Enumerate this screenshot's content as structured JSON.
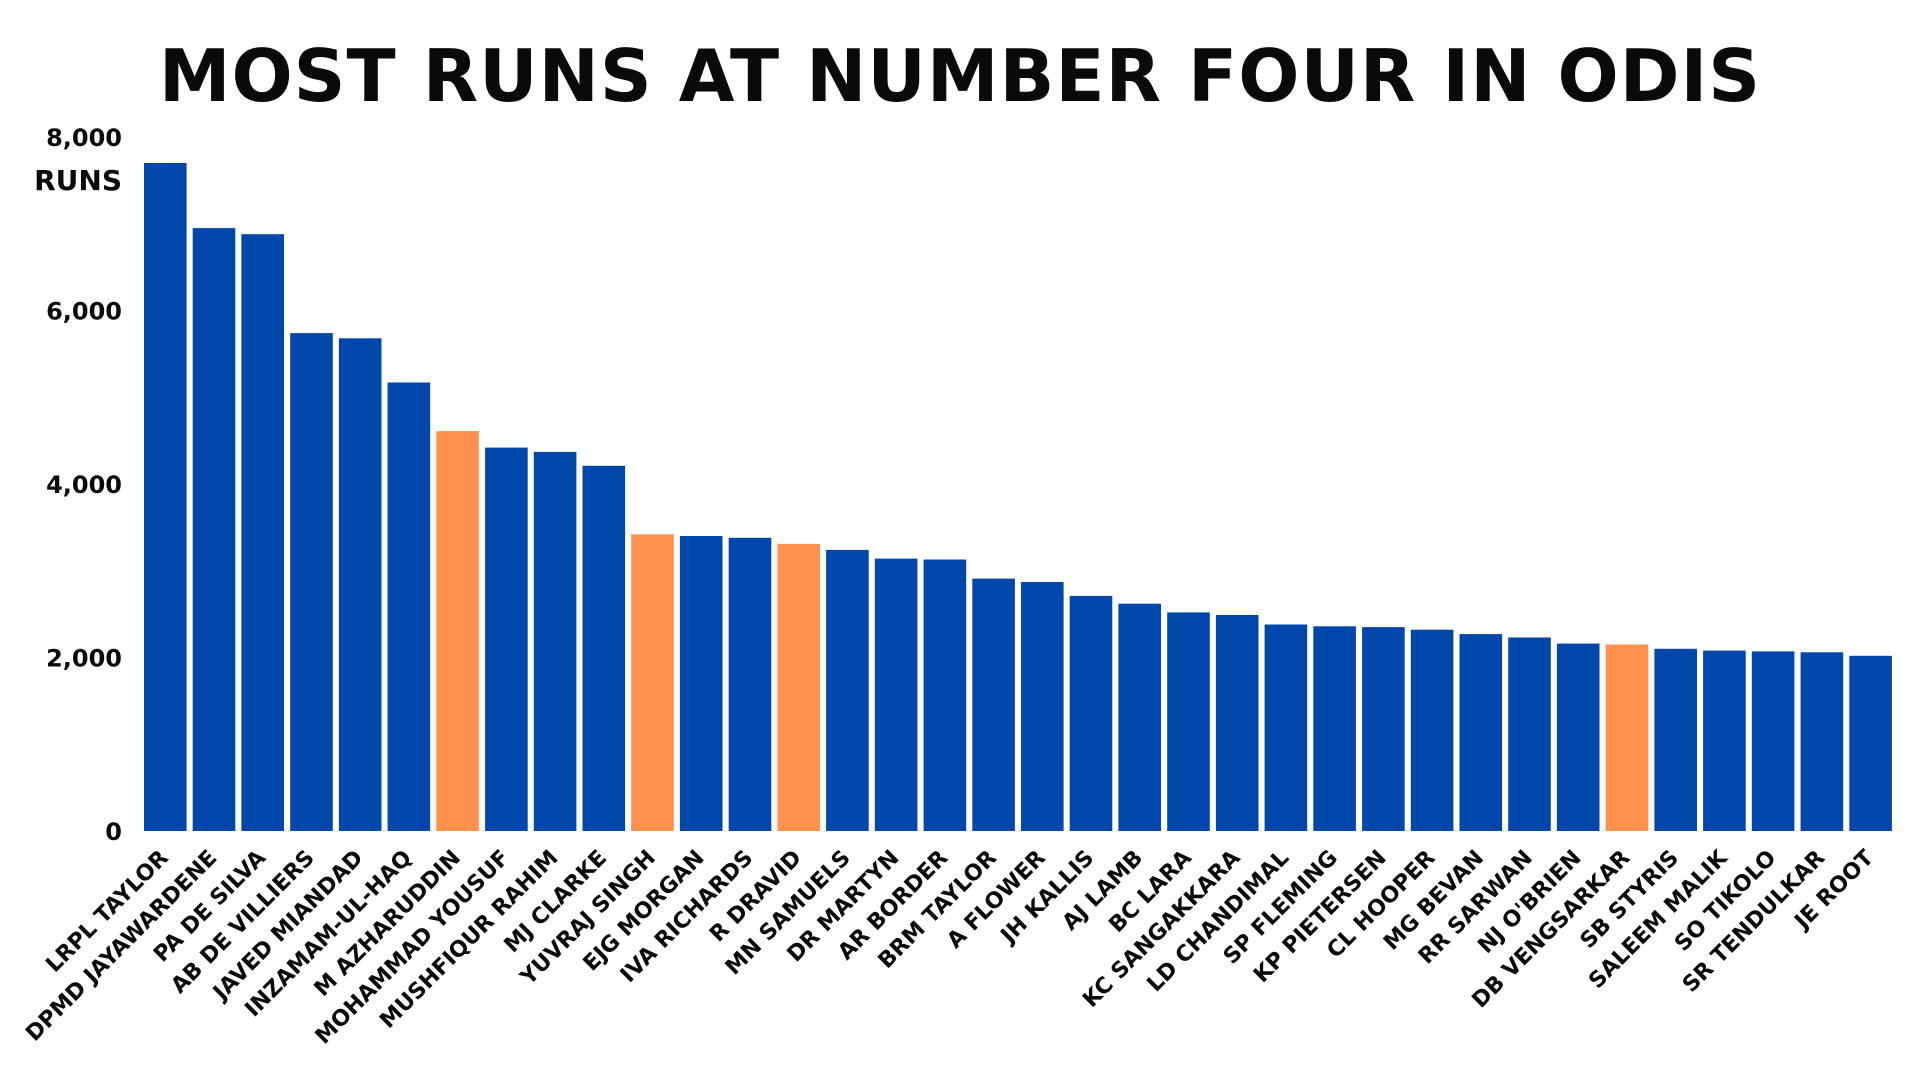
{
  "chart_data": {
    "type": "bar",
    "title": "MOST RUNS AT NUMBER FOUR IN ODIS",
    "unit_label": "RUNS",
    "ylim": [
      0,
      8000
    ],
    "yticks": [
      0,
      2000,
      4000,
      6000,
      8000
    ],
    "ytick_labels": [
      "0",
      "2,000",
      "4,000",
      "6,000",
      "8,000"
    ],
    "grid": false,
    "colors": {
      "default": "#0047ab",
      "highlight": "#ff914d"
    },
    "categories": [
      "LRPL TAYLOR",
      "DPMD JAYAWARDENE",
      "PA DE SILVA",
      "AB DE VILLIERS",
      "JAVED MIANDAD",
      "INZAMAM-UL-HAQ",
      "M AZHARUDDIN",
      "MOHAMMAD YOUSUF",
      "MUSHFIQUR RAHIM",
      "MJ CLARKE",
      "YUVRAJ SINGH",
      "EJG MORGAN",
      "IVA RICHARDS",
      "R DRAVID",
      "MN SAMUELS",
      "DR MARTYN",
      "AR BORDER",
      "BRM TAYLOR",
      "A FLOWER",
      "JH KALLIS",
      "AJ LAMB",
      "BC LARA",
      "KC SANGAKKARA",
      "LD CHANDIMAL",
      "SP FLEMING",
      "KP PIETERSEN",
      "CL HOOPER",
      "MG BEVAN",
      "RR SARWAN",
      "NJ O'BRIEN",
      "DB VENGSARKAR",
      "SB STYRIS",
      "SALEEM MALIK",
      "SO TIKOLO",
      "SR TENDULKAR",
      "JE ROOT"
    ],
    "values": [
      7700,
      6950,
      6880,
      5740,
      5680,
      5170,
      4610,
      4420,
      4370,
      4210,
      3420,
      3400,
      3380,
      3310,
      3240,
      3140,
      3130,
      2910,
      2870,
      2710,
      2620,
      2520,
      2490,
      2380,
      2360,
      2350,
      2320,
      2270,
      2230,
      2160,
      2150,
      2100,
      2080,
      2070,
      2060,
      2020
    ],
    "highlighted": [
      false,
      false,
      false,
      false,
      false,
      false,
      true,
      false,
      false,
      false,
      true,
      false,
      false,
      true,
      false,
      false,
      false,
      false,
      false,
      false,
      false,
      false,
      false,
      false,
      false,
      false,
      false,
      false,
      false,
      false,
      true,
      false,
      false,
      false,
      false,
      false
    ]
  }
}
